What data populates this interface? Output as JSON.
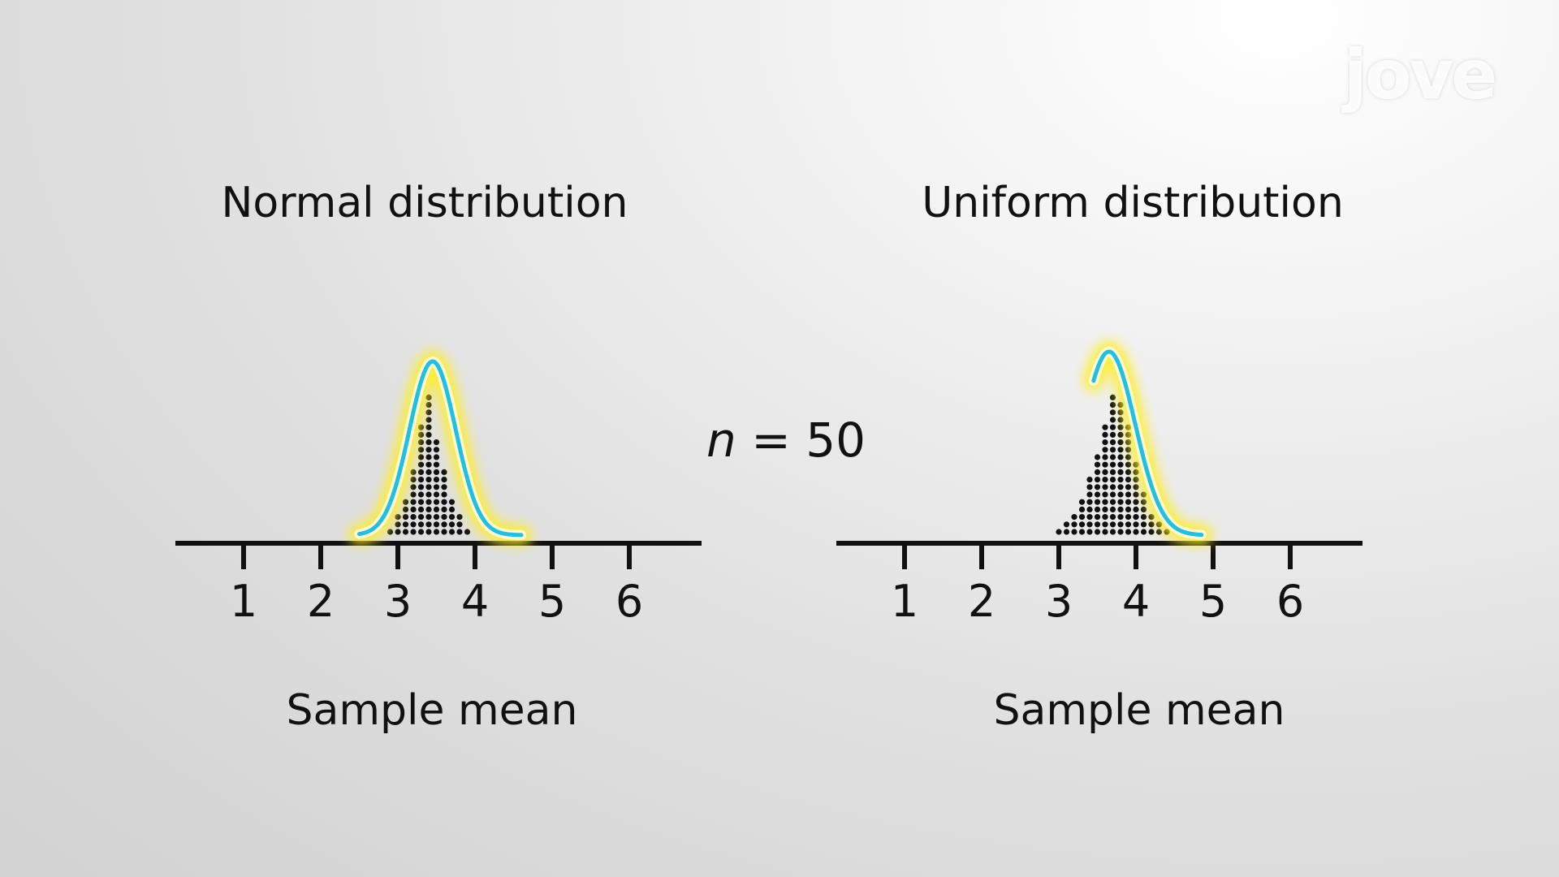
{
  "logo": {
    "text": "jove"
  },
  "annotation": {
    "variable": "n",
    "equals": " = ",
    "value": "50"
  },
  "colors": {
    "curve": "#1fc0e8",
    "glow": "#ffee22",
    "dots": "#111111",
    "axis": "#111111"
  },
  "chart_data": [
    {
      "type": "dot plot with density curve",
      "title": "Normal distribution",
      "xlabel": "Sample mean",
      "ylabel": "",
      "xticks": [
        1,
        2,
        3,
        4,
        5,
        6
      ],
      "xlim": [
        0.1,
        6.9
      ],
      "grid": false,
      "series": [
        {
          "kind": "dots",
          "x": [
            2.9,
            3.0,
            3.1,
            3.2,
            3.3,
            3.4,
            3.5,
            3.6,
            3.7,
            3.8,
            3.9
          ],
          "counts": [
            1,
            3,
            5,
            9,
            15,
            19,
            13,
            9,
            5,
            3,
            1
          ]
        },
        {
          "kind": "curve",
          "mean": 3.45,
          "sd": 0.3,
          "range": [
            2.5,
            4.6
          ]
        }
      ]
    },
    {
      "type": "dot plot with density curve",
      "title": "Uniform distribution",
      "xlabel": "Sample mean",
      "ylabel": "",
      "xticks": [
        1,
        2,
        3,
        4,
        5,
        6
      ],
      "xlim": [
        0.1,
        6.9
      ],
      "grid": false,
      "series": [
        {
          "kind": "dots",
          "x": [
            3.0,
            3.1,
            3.2,
            3.3,
            3.4,
            3.5,
            3.6,
            3.7,
            3.8,
            3.9,
            4.0,
            4.1,
            4.2,
            4.3,
            4.4
          ],
          "counts": [
            1,
            2,
            3,
            5,
            8,
            11,
            15,
            19,
            18,
            15,
            10,
            6,
            3,
            2,
            1
          ]
        },
        {
          "kind": "curve",
          "mean": 3.65,
          "sd": 0.34,
          "range": [
            3.45,
            4.85
          ]
        }
      ]
    }
  ]
}
